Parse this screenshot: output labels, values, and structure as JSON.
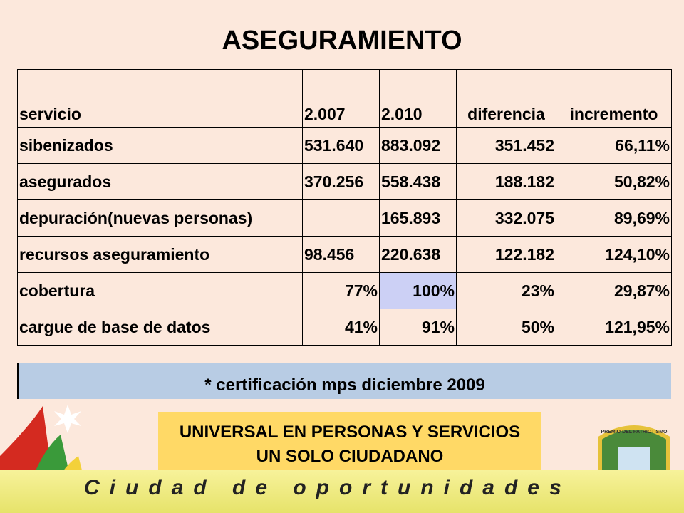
{
  "title": "ASEGURAMIENTO",
  "table": {
    "header": [
      "servicio",
      "2.007",
      "2.010",
      "diferencia",
      "incremento"
    ],
    "rows": [
      [
        "sibenizados",
        "531.640",
        "883.092",
        "351.452",
        "66,11%"
      ],
      [
        "asegurados",
        "370.256",
        "558.438",
        "188.182",
        "50,82%"
      ],
      [
        "depuración(nuevas personas)",
        null,
        "165.893",
        "332.075",
        "89,69%"
      ],
      [
        "recursos aseguramiento",
        "98.456",
        "220.638",
        "122.182",
        "124,10%"
      ],
      [
        "cobertura",
        "77%",
        "100%",
        "23%",
        "29,87%"
      ],
      [
        "cargue de base de datos",
        "41%",
        "91%",
        "50%",
        "121,95%"
      ]
    ]
  },
  "note": "* certificación mps diciembre 2009",
  "banner": [
    "UNIVERSAL EN PERSONAS Y SERVICIOS",
    "UN SOLO CIUDADANO"
  ],
  "slogan": "Ciudad de oportunidades",
  "emblem": "PREMIO DEL PATRIOTISMO"
}
